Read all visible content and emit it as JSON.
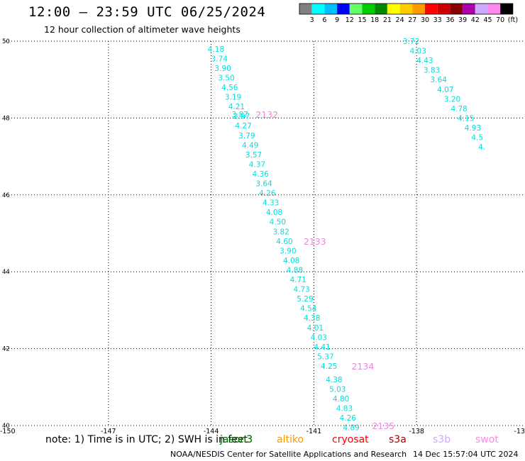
{
  "title": "12:00 — 23:59 UTC 06/25/2024",
  "subtitle": "12 hour collection of altimeter wave heights",
  "credit": "NOAA/NESDIS Center for Satellite Applications and Research",
  "timestamp": "14 Dec 15:57:04 UTC 2024",
  "note": "note:  1) Time is in UTC; 2) SWH is in feet",
  "colorbar": {
    "colors": [
      "#808080",
      "#00ffff",
      "#00bfff",
      "#0000ff",
      "#66ff66",
      "#00cc00",
      "#008800",
      "#ffff00",
      "#ffcc00",
      "#ff9900",
      "#ff0000",
      "#cc0000",
      "#880000",
      "#aa00aa",
      "#ccaaff",
      "#ff88ee",
      "#000000"
    ],
    "labels": [
      "3",
      "6",
      "9",
      "12",
      "15",
      "18",
      "21",
      "24",
      "27",
      "30",
      "33",
      "36",
      "39",
      "42",
      "45",
      "70",
      "(ft)"
    ]
  },
  "satellites": [
    {
      "name": "jason3",
      "color": "#000000"
    },
    {
      "name": "jason3",
      "color": "#008800"
    },
    {
      "name": "altiko",
      "color": "#ff9900"
    },
    {
      "name": "cryosat",
      "color": "#ff0000"
    },
    {
      "name": "s3a",
      "color": "#aa0000"
    },
    {
      "name": "s3b",
      "color": "#ccaaff"
    },
    {
      "name": "swot",
      "color": "#ff88ee"
    }
  ],
  "chart_data": {
    "type": "scatter",
    "title": "12:00 — 23:59 UTC 06/25/2024",
    "subtitle": "12 hour collection of altimeter wave heights",
    "xlim": [
      -150,
      -135
    ],
    "ylim": [
      40,
      50
    ],
    "x_ticks": [
      "-150",
      "-147",
      "-144",
      "-141",
      "-138",
      "-13"
    ],
    "y_ticks": [
      "40",
      "42",
      "44",
      "46",
      "48",
      "50"
    ],
    "grid": true,
    "swh_color": "#00dddd",
    "time_color": "#ee88dd",
    "points": [
      {
        "lon": -144.1,
        "lat": 49.8,
        "swh": "4.18"
      },
      {
        "lon": -144.0,
        "lat": 49.55,
        "swh": "3.74"
      },
      {
        "lon": -143.9,
        "lat": 49.3,
        "swh": "3.90"
      },
      {
        "lon": -143.8,
        "lat": 49.05,
        "swh": "3.50"
      },
      {
        "lon": -143.7,
        "lat": 48.8,
        "swh": "4.56"
      },
      {
        "lon": -143.6,
        "lat": 48.55,
        "swh": "3.19"
      },
      {
        "lon": -143.5,
        "lat": 48.3,
        "swh": "4.21"
      },
      {
        "lon": -143.4,
        "lat": 48.1,
        "swh": "3.87"
      },
      {
        "lon": -143.35,
        "lat": 48.05,
        "swh": "2.97"
      },
      {
        "lon": -143.3,
        "lat": 47.8,
        "swh": "4.27"
      },
      {
        "lon": -143.2,
        "lat": 47.55,
        "swh": "3.79"
      },
      {
        "lon": -143.1,
        "lat": 47.3,
        "swh": "4.49"
      },
      {
        "lon": -143.0,
        "lat": 47.05,
        "swh": "3.57"
      },
      {
        "lon": -142.9,
        "lat": 46.8,
        "swh": "4.37"
      },
      {
        "lon": -142.8,
        "lat": 46.55,
        "swh": "4.36"
      },
      {
        "lon": -142.7,
        "lat": 46.3,
        "swh": "3.64"
      },
      {
        "lon": -142.6,
        "lat": 46.05,
        "swh": "4.26"
      },
      {
        "lon": -142.5,
        "lat": 45.8,
        "swh": "4.33"
      },
      {
        "lon": -142.4,
        "lat": 45.55,
        "swh": "4.08"
      },
      {
        "lon": -142.3,
        "lat": 45.3,
        "swh": "4.50"
      },
      {
        "lon": -142.2,
        "lat": 45.05,
        "swh": "3.82"
      },
      {
        "lon": -142.1,
        "lat": 44.8,
        "swh": "4.60"
      },
      {
        "lon": -142.0,
        "lat": 44.55,
        "swh": "3.90"
      },
      {
        "lon": -141.9,
        "lat": 44.3,
        "swh": "4.08"
      },
      {
        "lon": -141.8,
        "lat": 44.05,
        "swh": "4.88"
      },
      {
        "lon": -141.7,
        "lat": 43.8,
        "swh": "4.71"
      },
      {
        "lon": -141.6,
        "lat": 43.55,
        "swh": "4.73"
      },
      {
        "lon": -141.5,
        "lat": 43.3,
        "swh": "5.29"
      },
      {
        "lon": -141.4,
        "lat": 43.05,
        "swh": "4.54"
      },
      {
        "lon": -141.3,
        "lat": 42.8,
        "swh": "4.38"
      },
      {
        "lon": -141.2,
        "lat": 42.55,
        "swh": "4.01"
      },
      {
        "lon": -141.1,
        "lat": 42.3,
        "swh": "4.03"
      },
      {
        "lon": -141.0,
        "lat": 42.05,
        "swh": "4.41"
      },
      {
        "lon": -140.9,
        "lat": 41.8,
        "swh": "5.37"
      },
      {
        "lon": -140.8,
        "lat": 41.55,
        "swh": "4.25"
      },
      {
        "lon": -140.65,
        "lat": 41.2,
        "swh": "4.38"
      },
      {
        "lon": -140.55,
        "lat": 40.95,
        "swh": "5.03"
      },
      {
        "lon": -140.45,
        "lat": 40.7,
        "swh": "4.80"
      },
      {
        "lon": -140.35,
        "lat": 40.45,
        "swh": "4.83"
      },
      {
        "lon": -140.25,
        "lat": 40.2,
        "swh": "4.26"
      },
      {
        "lon": -140.15,
        "lat": 39.95,
        "swh": "4.89"
      },
      {
        "lon": -138.4,
        "lat": 50.0,
        "swh": "3.72"
      },
      {
        "lon": -138.2,
        "lat": 49.75,
        "swh": "4.03"
      },
      {
        "lon": -138.0,
        "lat": 49.5,
        "swh": "4.43"
      },
      {
        "lon": -137.8,
        "lat": 49.25,
        "swh": "3.83"
      },
      {
        "lon": -137.6,
        "lat": 49.0,
        "swh": "3.64"
      },
      {
        "lon": -137.4,
        "lat": 48.75,
        "swh": "4.07"
      },
      {
        "lon": -137.2,
        "lat": 48.5,
        "swh": "3.20"
      },
      {
        "lon": -137.0,
        "lat": 48.25,
        "swh": "4.78"
      },
      {
        "lon": -136.8,
        "lat": 48.0,
        "swh": "4.15"
      },
      {
        "lon": -136.6,
        "lat": 47.75,
        "swh": "4.93"
      },
      {
        "lon": -136.4,
        "lat": 47.5,
        "swh": "4.5"
      },
      {
        "lon": -136.2,
        "lat": 47.25,
        "swh": "4."
      }
    ],
    "time_labels": [
      {
        "lon": -142.7,
        "lat": 48.1,
        "text": "2132"
      },
      {
        "lon": -141.3,
        "lat": 44.8,
        "text": "2133"
      },
      {
        "lon": -139.9,
        "lat": 41.55,
        "text": "2134"
      },
      {
        "lon": -139.3,
        "lat": 40.0,
        "text": "2135"
      }
    ]
  }
}
